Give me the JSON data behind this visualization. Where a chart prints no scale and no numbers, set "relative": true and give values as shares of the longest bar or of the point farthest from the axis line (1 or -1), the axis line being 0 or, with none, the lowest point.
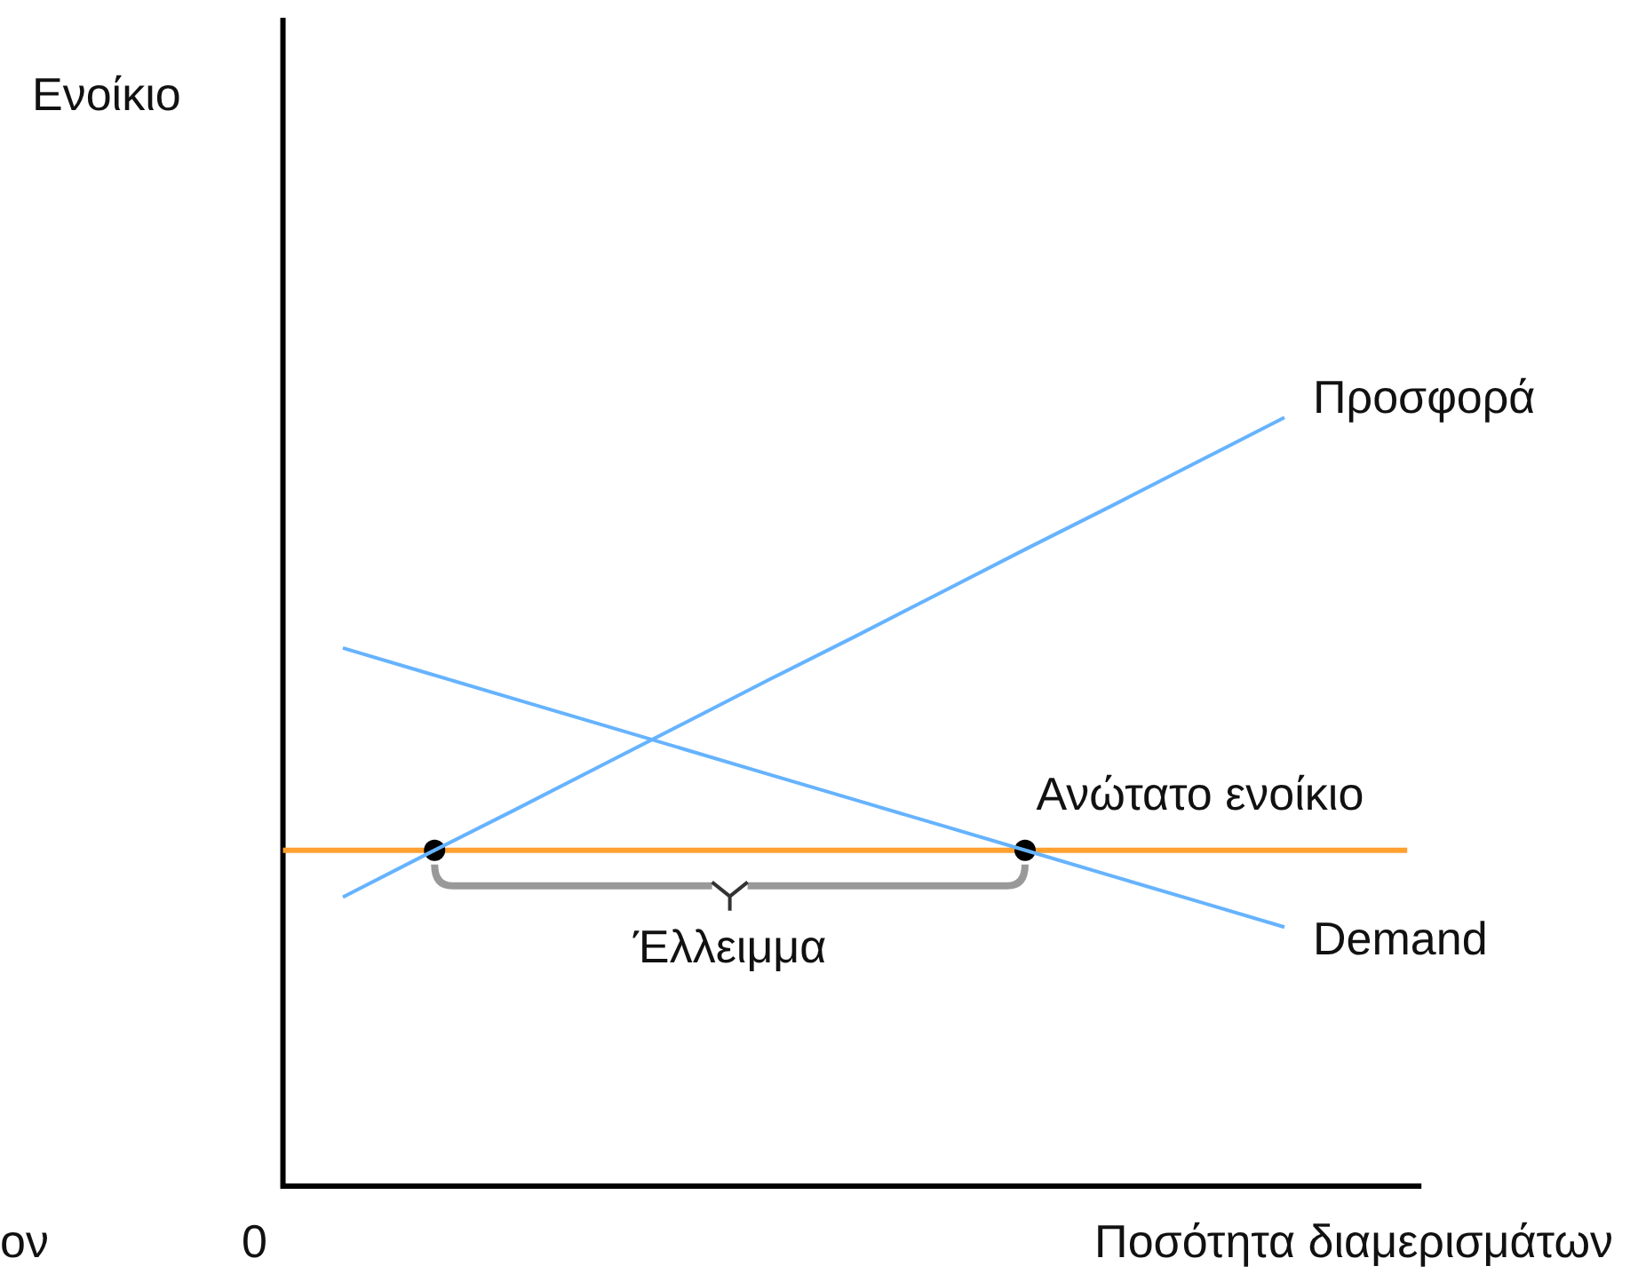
{
  "chart_data": {
    "type": "line",
    "relative": true,
    "xlabel": "Ποσότητα διαμερισμάτων",
    "legend": false,
    "marker": "none",
    "categories": [
      null,
      null,
      null,
      null,
      null,
      null,
      null,
      null,
      null,
      null,
      null,
      null
    ],
    "series": [
      {
        "name": "Προσφορά",
        "color": "#66b3ff",
        "values": [
          0.376,
          0.433,
          0.489,
          0.546,
          0.603,
          0.66,
          0.716,
          0.773,
          0.83,
          0.886,
          0.943,
          1
        ]
      },
      {
        "name": "Demand",
        "color": "#66b3ff",
        "values": [
          0.7,
          0.667,
          0.634,
          0.601,
          0.568,
          0.535,
          0.502,
          0.469,
          0.436,
          0.403,
          0.37,
          0.337
        ]
      }
    ],
    "ref_lines": [
      {
        "axis": "y",
        "value": 0.437,
        "label": "Ανώτατο ενοίκιο",
        "color": "#ffa030"
      }
    ],
    "annotations": [
      "Έλλειμμα",
      "ον",
      "0",
      "Ενοίκιο"
    ]
  }
}
